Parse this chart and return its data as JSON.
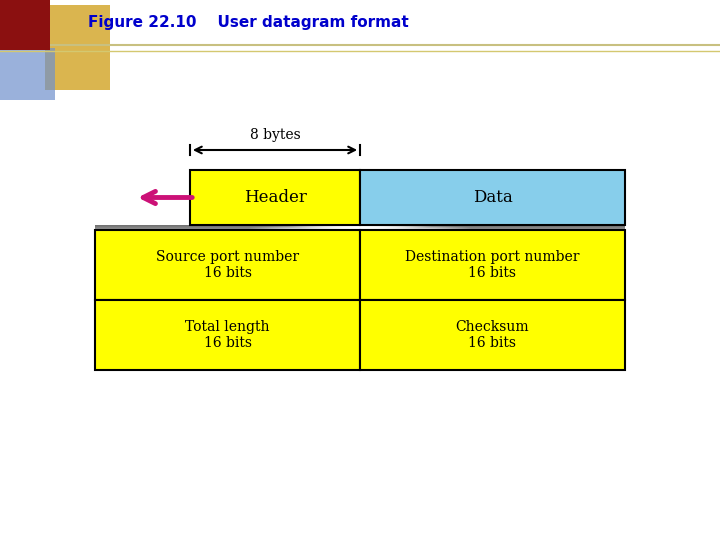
{
  "title": "Figure 22.10    User datagram format",
  "title_color": "#0000CC",
  "title_fontsize": 11,
  "bg_color": "#FFFFFF",
  "yellow": "#FFFF00",
  "light_blue": "#87CEEB",
  "black": "#000000",
  "pink_arrow_color": "#CC1177",
  "header_label": "Header",
  "data_label": "Data",
  "bytes_label": "8 bytes",
  "cells": [
    {
      "text": "Source port number\n16 bits"
    },
    {
      "text": "Destination port number\n16 bits"
    },
    {
      "text": "Total length\n16 bits"
    },
    {
      "text": "Checksum\n16 bits"
    }
  ],
  "decor_red": "#8B1010",
  "decor_blue": "#7090CC",
  "decor_gold": "#D4A830",
  "line_color": "#C8C080"
}
